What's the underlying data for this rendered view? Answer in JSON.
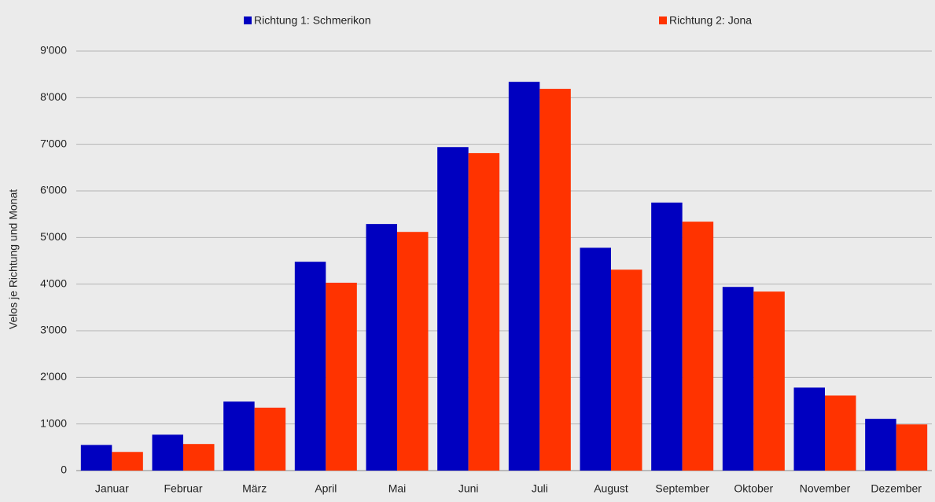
{
  "chart_data": {
    "type": "bar",
    "y_label": "Velos je Richtung und Monat",
    "categories": [
      "Januar",
      "Februar",
      "März",
      "April",
      "Mai",
      "Juni",
      "Juli",
      "August",
      "September",
      "Oktober",
      "November",
      "Dezember"
    ],
    "series": [
      {
        "name": "Richtung 1: Schmerikon",
        "color": "#0000c0",
        "values": [
          550,
          770,
          1480,
          4480,
          5290,
          6940,
          8340,
          4780,
          5750,
          3940,
          1780,
          1110
        ]
      },
      {
        "name": "Richtung 2: Jona",
        "color": "#ff3300",
        "values": [
          400,
          570,
          1350,
          4030,
          5120,
          6810,
          8190,
          4310,
          5340,
          3840,
          1610,
          990
        ]
      }
    ],
    "ylim": [
      0,
      9000
    ],
    "yticks": [
      0,
      {
        "value": 1000,
        "label": "1'000"
      },
      {
        "value": 2000,
        "label": "2'000"
      },
      {
        "value": 3000,
        "label": "3'000"
      },
      {
        "value": 4000,
        "label": "4'000"
      },
      {
        "value": 5000,
        "label": "5'000"
      },
      {
        "value": 6000,
        "label": "6'000"
      },
      {
        "value": 7000,
        "label": "7'000"
      },
      {
        "value": 8000,
        "label": "8'000"
      },
      {
        "value": 9000,
        "label": "9'000"
      }
    ],
    "grid": true,
    "legend": "top"
  }
}
